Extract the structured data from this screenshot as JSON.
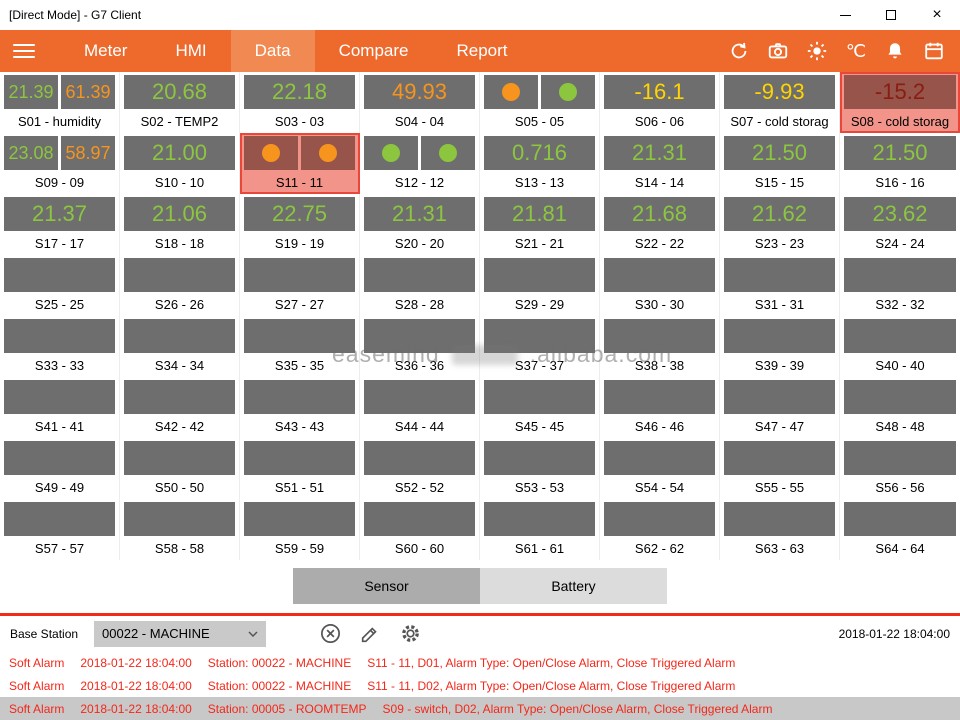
{
  "window": {
    "title": "[Direct Mode] - G7 Client",
    "controls": [
      "minimize",
      "maximize",
      "close"
    ]
  },
  "nav": {
    "tabs": [
      {
        "label": "Meter",
        "active": false
      },
      {
        "label": "HMI",
        "active": false
      },
      {
        "label": "Data",
        "active": true
      },
      {
        "label": "Compare",
        "active": false
      },
      {
        "label": "Report",
        "active": false
      }
    ],
    "icons": [
      "sync",
      "camera",
      "brightness",
      "celsius",
      "alarm-bell",
      "calendar"
    ],
    "unit_label": "℃"
  },
  "palette": {
    "green": "#8CC63F",
    "orange": "#F7941D",
    "yellow": "#FFD400",
    "darkred": "#8A1D12",
    "nav_orange": "#ED6A2C",
    "box_gray": "#6E6E6E",
    "highlight_bg": "#F2948A",
    "alarm_red": "#F3281A"
  },
  "grid": {
    "tiles": [
      {
        "label": "S01 - humidity",
        "cells": [
          {
            "value": "21.39",
            "color": "green"
          },
          {
            "value": "61.39",
            "color": "orange"
          }
        ]
      },
      {
        "label": "S02 - TEMP2",
        "cells": [
          {
            "value": "20.68",
            "color": "green"
          }
        ]
      },
      {
        "label": "S03 - 03",
        "cells": [
          {
            "value": "22.18",
            "color": "green"
          }
        ]
      },
      {
        "label": "S04 - 04",
        "cells": [
          {
            "value": "49.93",
            "color": "orange"
          }
        ]
      },
      {
        "label": "S05 - 05",
        "cells": [
          {
            "circle": "orange"
          },
          {
            "circle": "green"
          }
        ]
      },
      {
        "label": "S06 - 06",
        "cells": [
          {
            "value": "-16.1",
            "color": "yellow"
          }
        ]
      },
      {
        "label": "S07 - cold storag",
        "cells": [
          {
            "value": "-9.93",
            "color": "yellow"
          }
        ]
      },
      {
        "label": "S08 - cold storag",
        "highlight": true,
        "cells": [
          {
            "value": "-15.2",
            "color": "darkred"
          }
        ]
      },
      {
        "label": "S09 - 09",
        "cells": [
          {
            "value": "23.08",
            "color": "green"
          },
          {
            "value": "58.97",
            "color": "orange"
          }
        ]
      },
      {
        "label": "S10 - 10",
        "cells": [
          {
            "value": "21.00",
            "color": "green"
          }
        ]
      },
      {
        "label": "S11 - 11",
        "highlight": true,
        "cells": [
          {
            "circle": "orange"
          },
          {
            "circle": "orange"
          }
        ]
      },
      {
        "label": "S12 - 12",
        "cells": [
          {
            "circle": "green"
          },
          {
            "circle": "green"
          }
        ]
      },
      {
        "label": "S13 - 13",
        "cells": [
          {
            "value": "0.716",
            "color": "green"
          }
        ]
      },
      {
        "label": "S14 - 14",
        "cells": [
          {
            "value": "21.31",
            "color": "green"
          }
        ]
      },
      {
        "label": "S15 - 15",
        "cells": [
          {
            "value": "21.50",
            "color": "green"
          }
        ]
      },
      {
        "label": "S16 - 16",
        "cells": [
          {
            "value": "21.50",
            "color": "green"
          }
        ]
      },
      {
        "label": "S17 - 17",
        "cells": [
          {
            "value": "21.37",
            "color": "green"
          }
        ]
      },
      {
        "label": "S18 - 18",
        "cells": [
          {
            "value": "21.06",
            "color": "green"
          }
        ]
      },
      {
        "label": "S19 - 19",
        "cells": [
          {
            "value": "22.75",
            "color": "green"
          }
        ]
      },
      {
        "label": "S20 - 20",
        "cells": [
          {
            "value": "21.31",
            "color": "green"
          }
        ]
      },
      {
        "label": "S21 - 21",
        "cells": [
          {
            "value": "21.81",
            "color": "green"
          }
        ]
      },
      {
        "label": "S22 - 22",
        "cells": [
          {
            "value": "21.68",
            "color": "green"
          }
        ]
      },
      {
        "label": "S23 - 23",
        "cells": [
          {
            "value": "21.62",
            "color": "green"
          }
        ]
      },
      {
        "label": "S24 - 24",
        "cells": [
          {
            "value": "23.62",
            "color": "green"
          }
        ]
      },
      {
        "label": "S25 - 25",
        "cells": [
          {}
        ]
      },
      {
        "label": "S26 - 26",
        "cells": [
          {}
        ]
      },
      {
        "label": "S27 - 27",
        "cells": [
          {}
        ]
      },
      {
        "label": "S28 - 28",
        "cells": [
          {}
        ]
      },
      {
        "label": "S29 - 29",
        "cells": [
          {}
        ]
      },
      {
        "label": "S30 - 30",
        "cells": [
          {}
        ]
      },
      {
        "label": "S31 - 31",
        "cells": [
          {}
        ]
      },
      {
        "label": "S32 - 32",
        "cells": [
          {}
        ]
      },
      {
        "label": "S33 - 33",
        "cells": [
          {}
        ]
      },
      {
        "label": "S34 - 34",
        "cells": [
          {}
        ]
      },
      {
        "label": "S35 - 35",
        "cells": [
          {}
        ]
      },
      {
        "label": "S36 - 36",
        "cells": [
          {}
        ]
      },
      {
        "label": "S37 - 37",
        "cells": [
          {}
        ]
      },
      {
        "label": "S38 - 38",
        "cells": [
          {}
        ]
      },
      {
        "label": "S39 - 39",
        "cells": [
          {}
        ]
      },
      {
        "label": "S40 - 40",
        "cells": [
          {}
        ]
      },
      {
        "label": "S41 - 41",
        "cells": [
          {}
        ]
      },
      {
        "label": "S42 - 42",
        "cells": [
          {}
        ]
      },
      {
        "label": "S43 - 43",
        "cells": [
          {}
        ]
      },
      {
        "label": "S44 - 44",
        "cells": [
          {}
        ]
      },
      {
        "label": "S45 - 45",
        "cells": [
          {}
        ]
      },
      {
        "label": "S46 - 46",
        "cells": [
          {}
        ]
      },
      {
        "label": "S47 - 47",
        "cells": [
          {}
        ]
      },
      {
        "label": "S48 - 48",
        "cells": [
          {}
        ]
      },
      {
        "label": "S49 - 49",
        "cells": [
          {}
        ]
      },
      {
        "label": "S50 - 50",
        "cells": [
          {}
        ]
      },
      {
        "label": "S51 - 51",
        "cells": [
          {}
        ]
      },
      {
        "label": "S52 - 52",
        "cells": [
          {}
        ]
      },
      {
        "label": "S53 - 53",
        "cells": [
          {}
        ]
      },
      {
        "label": "S54 - 54",
        "cells": [
          {}
        ]
      },
      {
        "label": "S55 - 55",
        "cells": [
          {}
        ]
      },
      {
        "label": "S56 - 56",
        "cells": [
          {}
        ]
      },
      {
        "label": "S57 - 57",
        "cells": [
          {}
        ]
      },
      {
        "label": "S58 - 58",
        "cells": [
          {}
        ]
      },
      {
        "label": "S59 - 59",
        "cells": [
          {}
        ]
      },
      {
        "label": "S60 - 60",
        "cells": [
          {}
        ]
      },
      {
        "label": "S61 - 61",
        "cells": [
          {}
        ]
      },
      {
        "label": "S62 - 62",
        "cells": [
          {}
        ]
      },
      {
        "label": "S63 - 63",
        "cells": [
          {}
        ]
      },
      {
        "label": "S64 - 64",
        "cells": [
          {}
        ]
      }
    ]
  },
  "view_switch": {
    "sensor_label": "Sensor",
    "battery_label": "Battery"
  },
  "base_station": {
    "label": "Base Station",
    "selected": "00022 - MACHINE",
    "datetime": "2018-01-22 18:04:00"
  },
  "alarms": [
    {
      "severity": "Soft Alarm",
      "time": "2018-01-22 18:04:00",
      "station": "Station: 00022 - MACHINE",
      "detail": "S11 - 11, D01, Alarm Type: Open/Close Alarm, Close Triggered Alarm",
      "shaded": false
    },
    {
      "severity": "Soft Alarm",
      "time": "2018-01-22 18:04:00",
      "station": "Station: 00022 - MACHINE",
      "detail": "S11 - 11, D02, Alarm Type: Open/Close Alarm, Close Triggered Alarm",
      "shaded": false
    },
    {
      "severity": "Soft Alarm",
      "time": "2018-01-22 18:04:00",
      "station": "Station: 00005 - ROOMTEMP",
      "detail": "S09 - switch, D02, Alarm Type: Open/Close Alarm, Close Triggered Alarm",
      "shaded": true
    }
  ],
  "watermark": {
    "part1": "easemind",
    "part2": ".alibaba.com"
  }
}
